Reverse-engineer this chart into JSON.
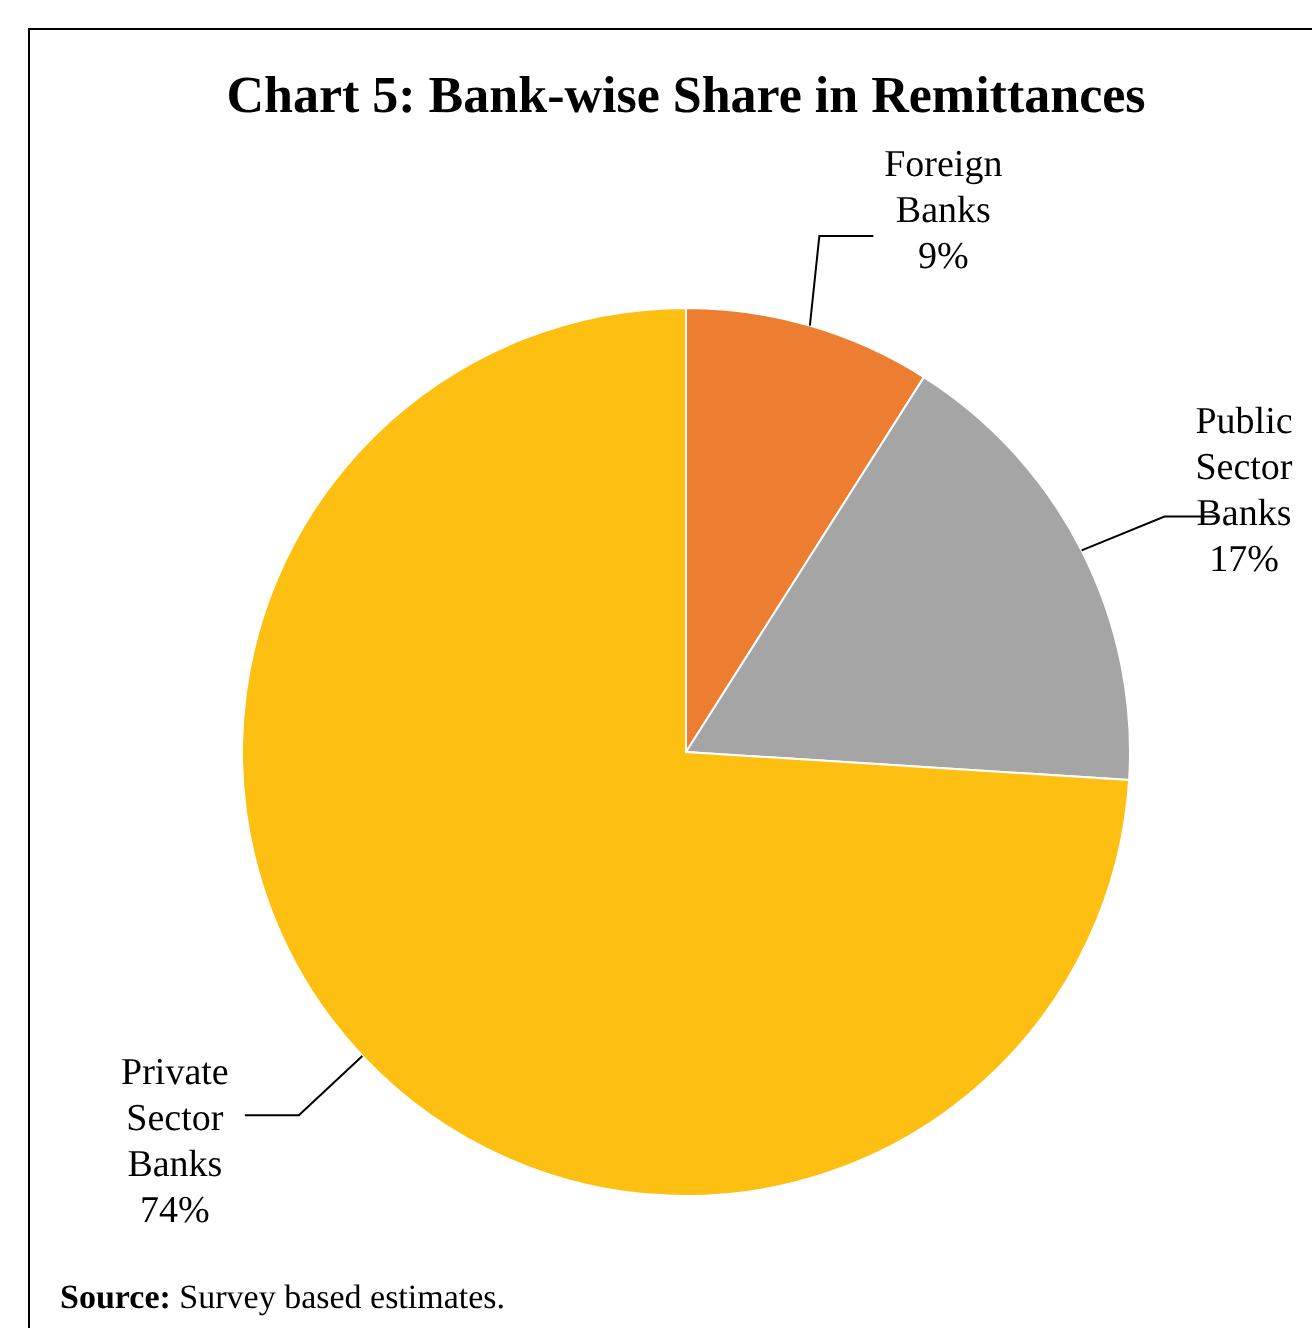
{
  "chart_data": {
    "type": "pie",
    "title": "Chart 5: Bank-wise Share in Remittances",
    "categories": [
      "Foreign Banks",
      "Public Sector Banks",
      "Private Sector Banks"
    ],
    "values": [
      9,
      17,
      74
    ],
    "colors": [
      "#ed7d31",
      "#a5a5a5",
      "#fdbf12"
    ],
    "value_labels": [
      "9%",
      "17%",
      "74%"
    ],
    "annotations": [
      "Source: Survey based estimates."
    ]
  }
}
